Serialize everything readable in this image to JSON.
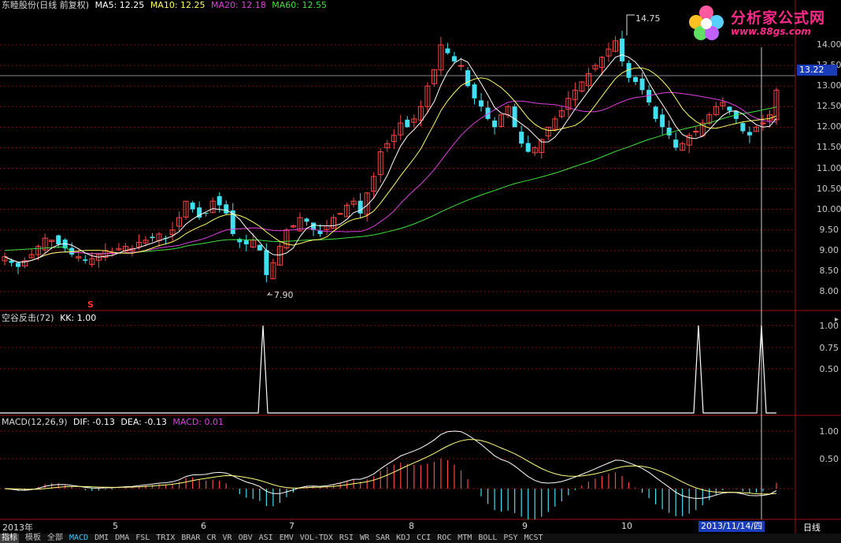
{
  "header": {
    "stock": "东睦股份(日线 前复权)",
    "ma5": "MA5: 12.25",
    "ma10": "MA10: 12.25",
    "ma20": "MA20: 12.18",
    "ma60": "MA60: 12.55"
  },
  "colors": {
    "ma5": "#ffffff",
    "ma10": "#ffff60",
    "ma20": "#e040e0",
    "ma60": "#40e040",
    "up": "#ff4444",
    "down": "#40e0f0",
    "grid": "#801010"
  },
  "price_axis": [
    "14.00",
    "13.50",
    "13.00",
    "12.50",
    "12.00",
    "11.50",
    "11.00",
    "10.50",
    "10.00",
    "9.50",
    "9.00",
    "8.50",
    "8.00"
  ],
  "current_price": "13.22",
  "high_marker": "14.75",
  "low_marker": "7.90",
  "kk_panel": {
    "title": "空谷反击(72)",
    "kk": "KK: 1.00",
    "axis": [
      "1.00",
      "0.75",
      "0.50"
    ]
  },
  "macd_panel": {
    "title": "MACD(12,26,9)",
    "dif": "DIF: -0.13",
    "dea": "DEA: -0.13",
    "macd": "MACD: 0.01",
    "axis": [
      "1.00",
      "0.50"
    ]
  },
  "x_axis": [
    "2013年",
    "5",
    "6",
    "7",
    "8",
    "9",
    "10"
  ],
  "cursor_date": "2013/11/14/四",
  "period": "日线",
  "tabs": [
    "指标",
    "模板",
    "全部",
    "MACD",
    "DMI",
    "DMA",
    "FSL",
    "TRIX",
    "BRAR",
    "CR",
    "VR",
    "OBV",
    "ASI",
    "EMV",
    "VOL-TDX",
    "RSI",
    "WR",
    "SAR",
    "KDJ",
    "CCI",
    "ROC",
    "MTM",
    "BOLL",
    "PSY",
    "MCST"
  ],
  "logo": {
    "name": "分析家公式网",
    "url": "www.88gs.com"
  },
  "marker_s": "S",
  "chart_data": {
    "type": "candlestick",
    "close": [
      8.85,
      8.7,
      8.6,
      8.75,
      8.9,
      9.1,
      9.3,
      9.25,
      9.15,
      9.05,
      8.9,
      8.85,
      8.75,
      8.8,
      8.9,
      9.0,
      8.95,
      9.05,
      9.1,
      9.05,
      9.2,
      9.25,
      9.3,
      9.4,
      9.3,
      9.5,
      9.8,
      10.2,
      10.0,
      9.8,
      9.9,
      10.2,
      10.1,
      9.9,
      9.4,
      9.2,
      9.15,
      9.25,
      9.0,
      8.4,
      8.7,
      9.1,
      9.5,
      9.6,
      9.8,
      9.7,
      9.5,
      9.4,
      9.6,
      9.8,
      9.9,
      10.1,
      10.2,
      9.9,
      10.4,
      10.8,
      11.4,
      11.6,
      11.8,
      12.1,
      12.0,
      12.2,
      12.5,
      13.0,
      13.4,
      14.0,
      13.8,
      13.6,
      13.5,
      13.0,
      12.7,
      12.5,
      12.2,
      12.0,
      12.3,
      12.5,
      12.0,
      11.6,
      11.4,
      11.5,
      11.7,
      12.0,
      12.2,
      12.4,
      12.7,
      12.9,
      13.1,
      13.3,
      13.5,
      13.7,
      13.9,
      14.1,
      13.6,
      13.2,
      13.1,
      12.9,
      12.6,
      12.2,
      12.0,
      11.8,
      11.5,
      11.6,
      11.8,
      11.9,
      12.1,
      12.3,
      12.5,
      12.6,
      12.4,
      12.2,
      11.9,
      11.8,
      12.0,
      12.1,
      12.3,
      12.9
    ]
  }
}
